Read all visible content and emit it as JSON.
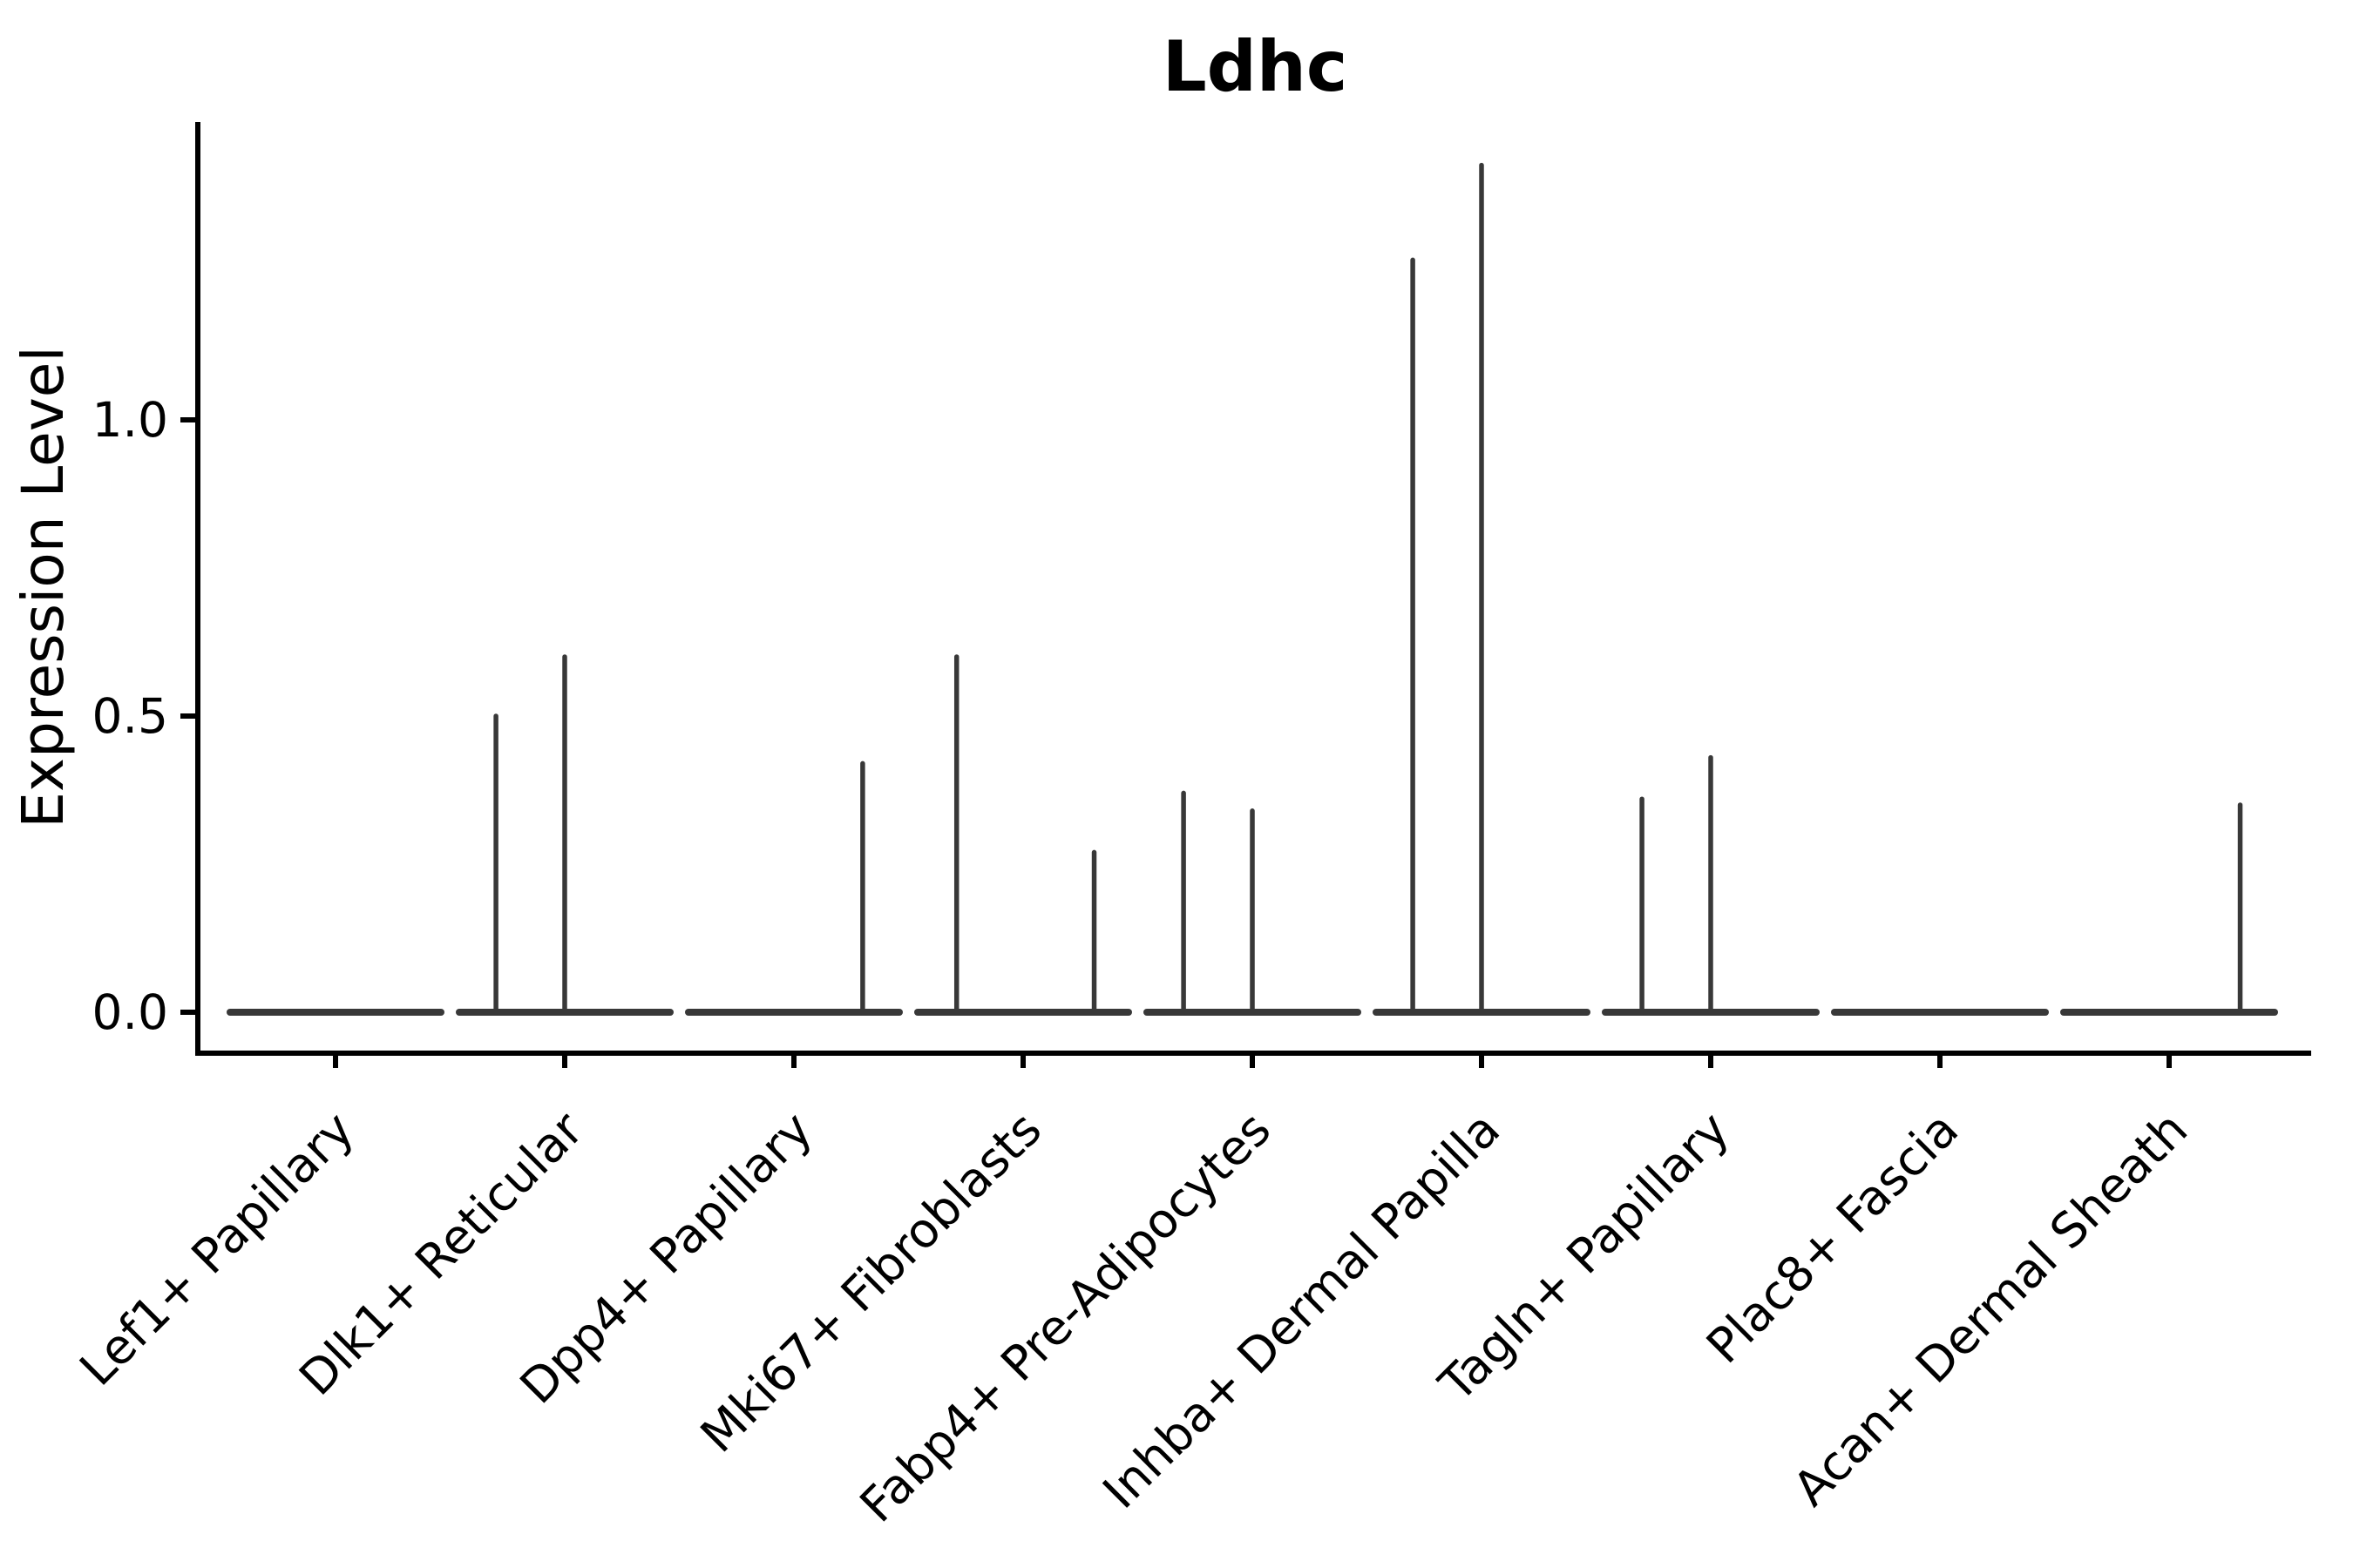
{
  "title": "Ldhc",
  "y_axis_label": "Expression Level",
  "chart_data": {
    "type": "violin",
    "title": "Ldhc",
    "xlabel": "",
    "ylabel": "Expression Level",
    "grid": false,
    "legend": "none",
    "background": "#ffffff",
    "categories": [
      "Lef1+ Papillary",
      "Dlk1+ Reticular",
      "Dpp4+ Papillary",
      "Mki67+ Fibroblasts",
      "Fabp4+ Pre-Adipocytes",
      "Inhba+ Dermal Papilla",
      "Tagln+ Papillary",
      "Plac8+ Fascia",
      "Acan+ Dermal Sheath"
    ],
    "y_ticks": [
      {
        "label": "0.0",
        "value": 0.0
      },
      {
        "label": "0.5",
        "value": 0.5
      },
      {
        "label": "1.0",
        "value": 1.0
      }
    ],
    "ylim": [
      -0.07,
      1.5
    ],
    "xlim": [
      0.4,
      9.62
    ],
    "x_tick_label_rotation_deg": 45,
    "violin_body_halfwidth": 0.46,
    "violins": [
      {
        "category": "Lef1+ Papillary",
        "baseline": 0.0,
        "spikes": []
      },
      {
        "category": "Dlk1+ Reticular",
        "baseline": 0.0,
        "spikes": [
          {
            "offset": -0.3,
            "max": 0.5
          },
          {
            "offset": 0.0,
            "max": 0.6
          }
        ]
      },
      {
        "category": "Dpp4+ Papillary",
        "baseline": 0.0,
        "spikes": [
          {
            "offset": 0.3,
            "max": 0.42
          }
        ]
      },
      {
        "category": "Mki67+ Fibroblasts",
        "baseline": 0.0,
        "spikes": [
          {
            "offset": -0.29,
            "max": 0.6
          },
          {
            "offset": 0.31,
            "max": 0.27
          }
        ]
      },
      {
        "category": "Fabp4+ Pre-Adipocytes",
        "baseline": 0.0,
        "spikes": [
          {
            "offset": -0.3,
            "max": 0.37
          },
          {
            "offset": 0.0,
            "max": 0.34
          }
        ]
      },
      {
        "category": "Inhba+ Dermal Papilla",
        "baseline": 0.0,
        "spikes": [
          {
            "offset": -0.3,
            "max": 1.27
          },
          {
            "offset": 0.0,
            "max": 1.43
          }
        ]
      },
      {
        "category": "Tagln+ Papillary",
        "baseline": 0.0,
        "spikes": [
          {
            "offset": -0.3,
            "max": 0.36
          },
          {
            "offset": 0.0,
            "max": 0.43
          }
        ]
      },
      {
        "category": "Plac8+ Fascia",
        "baseline": 0.0,
        "spikes": []
      },
      {
        "category": "Acan+ Dermal Sheath",
        "baseline": 0.0,
        "spikes": [
          {
            "offset": 0.31,
            "max": 0.35
          }
        ]
      }
    ],
    "colors": {
      "violin_stroke": "#383838",
      "axis": "#000000",
      "text": "#000000",
      "background": "#ffffff"
    }
  }
}
